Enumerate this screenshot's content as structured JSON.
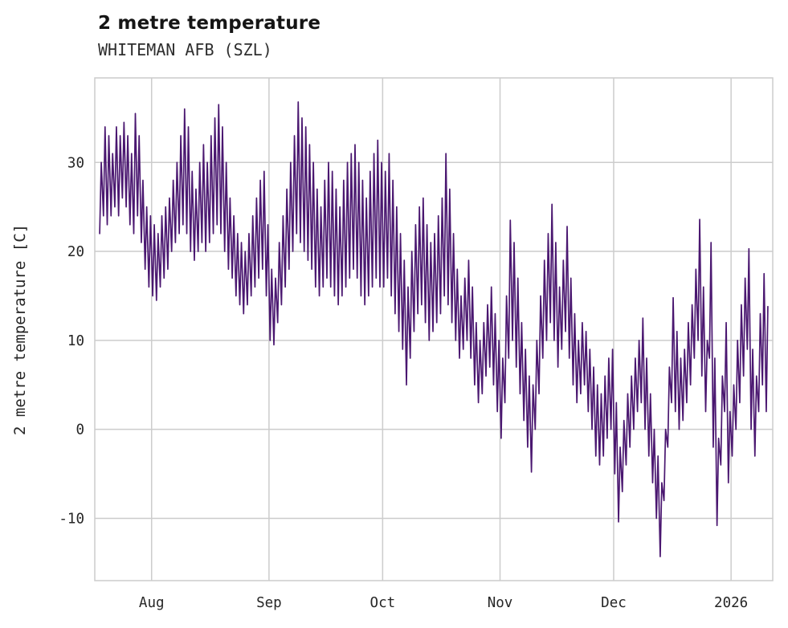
{
  "header": {
    "title": "2 metre temperature",
    "subtitle": "WHITEMAN AFB (SZL)"
  },
  "chart_data": {
    "type": "line",
    "title": "2 metre temperature",
    "subtitle": "WHITEMAN AFB (SZL)",
    "xlabel": "",
    "ylabel": "2 metre temperature [C]",
    "line_color": "#4a1770",
    "grid": true,
    "grid_color": "#cccccc",
    "background": "#ffffff",
    "ylim": [
      -17,
      39.5
    ],
    "yticks": [
      -10,
      0,
      10,
      20,
      30
    ],
    "ytick_labels": [
      "-10",
      "0",
      "10",
      "20",
      "30"
    ],
    "x_start_date": "2025-07-18",
    "days_total": 177,
    "x_tick_day_indices": [
      14,
      45,
      75,
      106,
      136,
      167
    ],
    "x_tick_labels": [
      "Aug",
      "Sep",
      "Oct",
      "Nov",
      "Dec",
      "2026"
    ],
    "series_name": "2 metre temperature at WHITEMAN AFB (SZL), daily min/max envelope of hourly trace, degrees C",
    "daily_min": [
      22,
      24,
      23,
      24,
      25,
      24,
      26,
      25,
      23,
      22,
      24,
      21,
      18,
      16,
      15,
      14.5,
      16,
      17,
      18,
      20,
      21,
      22,
      23,
      22,
      20,
      19,
      20,
      21,
      20,
      21,
      22,
      23,
      22,
      20,
      18,
      17,
      15,
      14,
      13,
      14,
      15,
      16,
      17,
      18,
      15,
      10,
      9.5,
      12,
      14,
      16,
      18,
      20,
      22,
      21,
      20,
      19,
      18,
      16,
      15,
      16,
      17,
      16,
      15,
      14,
      15,
      16,
      17,
      18,
      17,
      15,
      14,
      15,
      16,
      17,
      16,
      16,
      17,
      15,
      13,
      11,
      9,
      5,
      8,
      11,
      13,
      14,
      12,
      10,
      11,
      12,
      13,
      15,
      14,
      12,
      10,
      8,
      9,
      10,
      8,
      5,
      3,
      4,
      6,
      7,
      5,
      2,
      -1,
      3,
      8,
      10,
      7,
      4,
      1,
      -2,
      -4.8,
      0,
      4,
      8,
      10,
      12,
      10,
      7,
      9,
      11,
      8,
      5,
      3,
      4,
      5,
      2,
      0,
      -3,
      -4,
      -3,
      -1,
      0,
      -5,
      -10.4,
      -7,
      -4,
      -2,
      0,
      2,
      3,
      0,
      -3,
      -6,
      -10,
      -14.3,
      -8,
      -2,
      3,
      2,
      0,
      1,
      3,
      5,
      8,
      10,
      6,
      2,
      8,
      -2,
      -10.8,
      -4,
      2,
      -6,
      -3,
      0,
      3,
      6,
      9,
      0,
      -3,
      2,
      5,
      2
    ],
    "daily_max": [
      30,
      34,
      33,
      31,
      34,
      33,
      34.5,
      33,
      31,
      35.5,
      33,
      28,
      25,
      24,
      23,
      22,
      24,
      25,
      26,
      28,
      30,
      33,
      36,
      34,
      29,
      27,
      30,
      32,
      30,
      33,
      35,
      36.5,
      34,
      30,
      26,
      24,
      22,
      21,
      20,
      22,
      24,
      26,
      28,
      29,
      23,
      18,
      17,
      21,
      24,
      27,
      30,
      33,
      36.8,
      35,
      34,
      32,
      30,
      27,
      25,
      28,
      30,
      29,
      27,
      25,
      28,
      30,
      31,
      32,
      30,
      28,
      26,
      29,
      31,
      32.5,
      30,
      29,
      31,
      28,
      25,
      22,
      19,
      16,
      20,
      23,
      25,
      26,
      23,
      21,
      22,
      24,
      26,
      31,
      27,
      22,
      18,
      15,
      17,
      19,
      16,
      12,
      10,
      12,
      14,
      16,
      13,
      10,
      8,
      15,
      23.5,
      21,
      17,
      12,
      9,
      6,
      5,
      10,
      15,
      19,
      22,
      25.3,
      21,
      16,
      19,
      22.8,
      17,
      13,
      10,
      12,
      11,
      9,
      7,
      5,
      4,
      6,
      8,
      9,
      3,
      -2,
      1,
      4,
      6,
      8,
      10,
      12.5,
      8,
      4,
      0,
      -3,
      -6,
      0,
      7,
      14.8,
      11,
      8,
      9,
      12,
      14,
      18,
      23.6,
      16,
      10,
      21,
      8,
      -1,
      6,
      12,
      2,
      5,
      10,
      14,
      17,
      20.3,
      9,
      6,
      13,
      17.5,
      13.8
    ]
  }
}
